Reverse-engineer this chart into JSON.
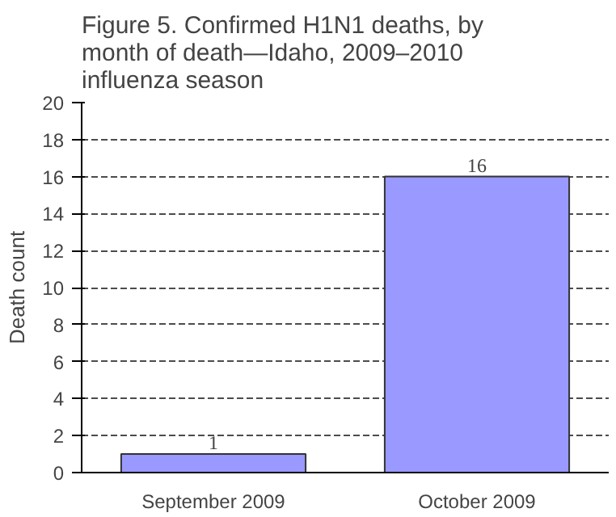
{
  "chart_data": {
    "type": "bar",
    "title": "Figure 5. Confirmed H1N1 deaths, by month of death—Idaho, 2009–2010 influenza season",
    "ylabel": "Death count",
    "categories": [
      "September 2009",
      "October 2009"
    ],
    "values": [
      1,
      16
    ],
    "color": "#9999ff",
    "ylim": [
      0,
      20
    ],
    "yticks": [
      0,
      2,
      4,
      6,
      8,
      10,
      12,
      14,
      16,
      18,
      20
    ],
    "grid": "y",
    "data_labels": true
  }
}
